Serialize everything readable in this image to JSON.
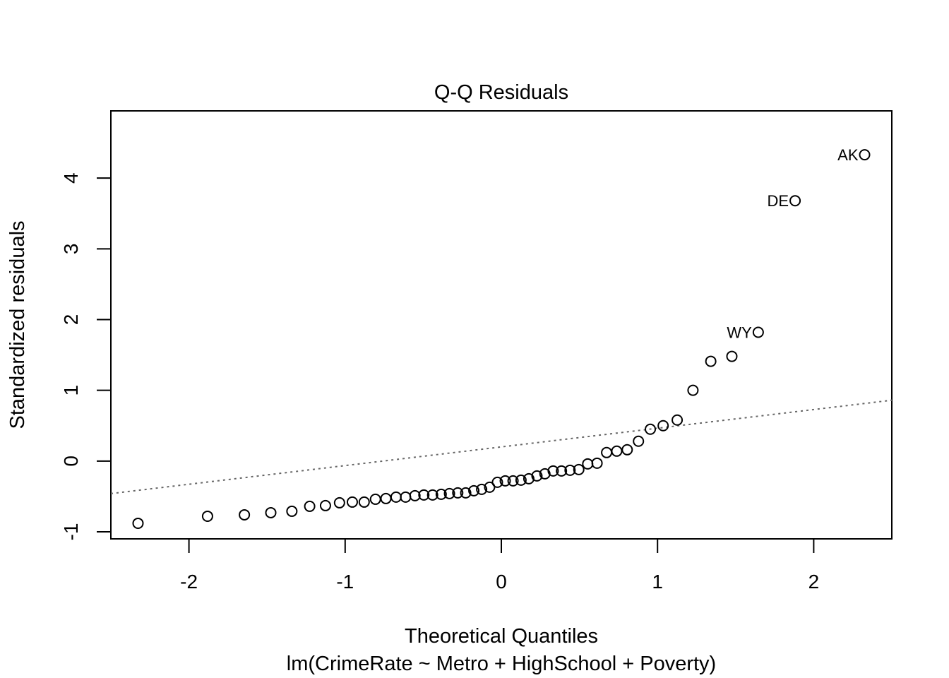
{
  "chart_data": {
    "type": "scatter",
    "title": "Q-Q Residuals",
    "xlabel": "Theoretical Quantiles",
    "subtitle": "lm(CrimeRate ~ Metro + HighSchool + Poverty)",
    "ylabel": "Standardized residuals",
    "xlim": [
      -2.5,
      2.5
    ],
    "ylim": [
      -1.1,
      4.95
    ],
    "x_ticks": [
      -2,
      -1,
      0,
      1,
      2
    ],
    "y_ticks": [
      -1,
      0,
      1,
      2,
      3,
      4
    ],
    "x_tick_labels": [
      "-2",
      "-1",
      "0",
      "1",
      "2"
    ],
    "y_tick_labels": [
      "-1",
      "0",
      "1",
      "2",
      "3",
      "4"
    ],
    "grid": false,
    "reference_line": {
      "style": "dotted",
      "color": "#666666",
      "intercept": 0.2,
      "slope": 0.264
    },
    "points": [
      {
        "x": -2.326,
        "y": -0.88
      },
      {
        "x": -1.881,
        "y": -0.78
      },
      {
        "x": -1.645,
        "y": -0.76
      },
      {
        "x": -1.476,
        "y": -0.73
      },
      {
        "x": -1.341,
        "y": -0.71
      },
      {
        "x": -1.227,
        "y": -0.64
      },
      {
        "x": -1.126,
        "y": -0.63
      },
      {
        "x": -1.036,
        "y": -0.59
      },
      {
        "x": -0.954,
        "y": -0.58
      },
      {
        "x": -0.878,
        "y": -0.58
      },
      {
        "x": -0.806,
        "y": -0.54
      },
      {
        "x": -0.739,
        "y": -0.53
      },
      {
        "x": -0.674,
        "y": -0.51
      },
      {
        "x": -0.613,
        "y": -0.51
      },
      {
        "x": -0.553,
        "y": -0.49
      },
      {
        "x": -0.496,
        "y": -0.48
      },
      {
        "x": -0.44,
        "y": -0.48
      },
      {
        "x": -0.385,
        "y": -0.47
      },
      {
        "x": -0.332,
        "y": -0.46
      },
      {
        "x": -0.279,
        "y": -0.45
      },
      {
        "x": -0.228,
        "y": -0.45
      },
      {
        "x": -0.176,
        "y": -0.42
      },
      {
        "x": -0.126,
        "y": -0.4
      },
      {
        "x": -0.075,
        "y": -0.37
      },
      {
        "x": -0.025,
        "y": -0.3
      },
      {
        "x": 0.025,
        "y": -0.28
      },
      {
        "x": 0.075,
        "y": -0.28
      },
      {
        "x": 0.126,
        "y": -0.27
      },
      {
        "x": 0.176,
        "y": -0.25
      },
      {
        "x": 0.228,
        "y": -0.21
      },
      {
        "x": 0.279,
        "y": -0.18
      },
      {
        "x": 0.332,
        "y": -0.14
      },
      {
        "x": 0.385,
        "y": -0.14
      },
      {
        "x": 0.44,
        "y": -0.13
      },
      {
        "x": 0.496,
        "y": -0.12
      },
      {
        "x": 0.553,
        "y": -0.04
      },
      {
        "x": 0.613,
        "y": -0.03
      },
      {
        "x": 0.674,
        "y": 0.12
      },
      {
        "x": 0.739,
        "y": 0.14
      },
      {
        "x": 0.806,
        "y": 0.16
      },
      {
        "x": 0.878,
        "y": 0.28
      },
      {
        "x": 0.954,
        "y": 0.45
      },
      {
        "x": 1.036,
        "y": 0.5
      },
      {
        "x": 1.126,
        "y": 0.58
      },
      {
        "x": 1.227,
        "y": 1.0
      },
      {
        "x": 1.341,
        "y": 1.41
      },
      {
        "x": 1.476,
        "y": 1.48
      },
      {
        "x": 1.645,
        "y": 1.82,
        "label": "WY"
      },
      {
        "x": 1.881,
        "y": 3.68,
        "label": "DE"
      },
      {
        "x": 2.326,
        "y": 4.33,
        "label": "AK"
      }
    ]
  }
}
